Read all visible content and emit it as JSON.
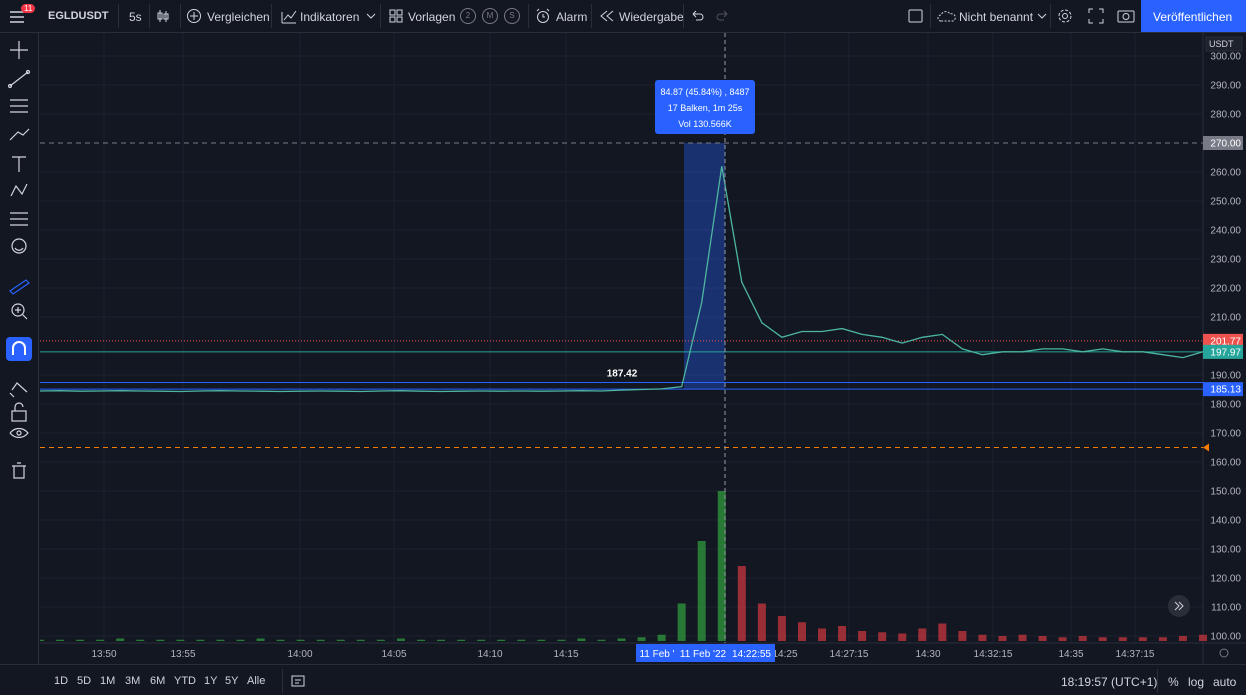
{
  "toolbar": {
    "symbol": "EGLDUSDT",
    "interval": "5s",
    "compare": "Vergleichen",
    "indicators": "Indikatoren",
    "templates": "Vorlagen",
    "template_slots": [
      "2",
      "M",
      "S"
    ],
    "alert": "Alarm",
    "replay": "Wiedergabe",
    "layout_name": "Nicht benannt",
    "publish": "Veröffentlichen",
    "badge": "11"
  },
  "chart": {
    "currency": "USDT",
    "yticks": [
      {
        "value": 300,
        "label": "300.00"
      },
      {
        "value": 290,
        "label": "290.00"
      },
      {
        "value": 280,
        "label": "280.00"
      },
      {
        "value": 260,
        "label": "260.00"
      },
      {
        "value": 250,
        "label": "250.00"
      },
      {
        "value": 240,
        "label": "240.00"
      },
      {
        "value": 230,
        "label": "230.00"
      },
      {
        "value": 220,
        "label": "220.00"
      },
      {
        "value": 210,
        "label": "210.00"
      },
      {
        "value": 190,
        "label": "190.00"
      },
      {
        "value": 180,
        "label": "180.00"
      },
      {
        "value": 170,
        "label": "170.00"
      },
      {
        "value": 160,
        "label": "160.00"
      },
      {
        "value": 150,
        "label": "150.00"
      },
      {
        "value": 140,
        "label": "140.00"
      },
      {
        "value": 130,
        "label": "130.00"
      },
      {
        "value": 120,
        "label": "120.00"
      },
      {
        "value": 110,
        "label": "110.00"
      },
      {
        "value": 100,
        "label": "100.00"
      }
    ],
    "ylim": [
      100,
      300
    ],
    "xlabels": [
      "13:50",
      "13:55",
      "14:00",
      "14:05",
      "14:10",
      "14:15",
      "14:25",
      "14:27:15",
      "14:30",
      "14:32:15",
      "14:35",
      "14:37:15"
    ],
    "range_labels": [
      "11 Feb '",
      "11 Feb '22",
      "14:22:55"
    ],
    "price": {
      "color": "#4db6a0",
      "values": [
        184.5,
        184.6,
        184.4,
        184.5,
        184.6,
        184.5,
        184.4,
        184.3,
        184.5,
        184.6,
        184.5,
        184.4,
        184.3,
        184.4,
        184.5,
        184.4,
        184.3,
        184.5,
        184.6,
        184.4,
        184.3,
        184.4,
        184.5,
        184.4,
        184.5,
        184.4,
        184.5,
        184.6,
        184.5,
        184.8,
        185,
        185.2,
        186,
        215,
        262,
        222,
        208,
        203,
        205,
        205,
        206,
        204,
        203,
        201,
        203,
        204,
        199,
        197,
        198,
        198,
        199,
        199,
        198,
        199,
        198,
        198,
        197,
        196,
        198
      ]
    },
    "volume": {
      "color": "#2e8b3a",
      "values": [
        0.1,
        0.1,
        0.1,
        0.1,
        0.2,
        0.1,
        0.1,
        0.1,
        0.1,
        0.1,
        0.1,
        0.2,
        0.1,
        0.1,
        0.1,
        0.1,
        0.1,
        0.1,
        0.2,
        0.1,
        0.1,
        0.1,
        0.1,
        0.1,
        0.1,
        0.1,
        0.1,
        0.2,
        0.1,
        0.2,
        0.3,
        0.5,
        3,
        8,
        12,
        6,
        3,
        2,
        1.5,
        1,
        1.2,
        0.8,
        0.7,
        0.6,
        1,
        1.4,
        0.8,
        0.5,
        0.4,
        0.5,
        0.4,
        0.3,
        0.4,
        0.3,
        0.3,
        0.3,
        0.3,
        0.4,
        0.5
      ]
    },
    "price_lines": [
      {
        "value": 270,
        "label": "270.00",
        "color": "#787b86"
      },
      {
        "value": 201.77,
        "label": "201.77",
        "color": "#ef5350"
      },
      {
        "value": 197.97,
        "label": "197.97",
        "color": "#26a69a"
      },
      {
        "value": 185.13,
        "label": "185.13",
        "color": "#2962ff"
      },
      {
        "value": 187.42,
        "label": "187.42",
        "color": "#2962ff"
      },
      {
        "value": 165,
        "color": "#f57c00"
      }
    ],
    "measure": {
      "lines": [
        "84.87 (45.84%) , 8487",
        "17 Balken, 1m 25s",
        "Vol 130.566K"
      ]
    }
  },
  "bottom": {
    "ranges": [
      "1D",
      "5D",
      "1M",
      "3M",
      "6M",
      "YTD",
      "1Y",
      "5Y",
      "Alle"
    ],
    "clock": "18:19:57 (UTC+1)",
    "percent": "%",
    "log": "log",
    "auto": "auto"
  }
}
